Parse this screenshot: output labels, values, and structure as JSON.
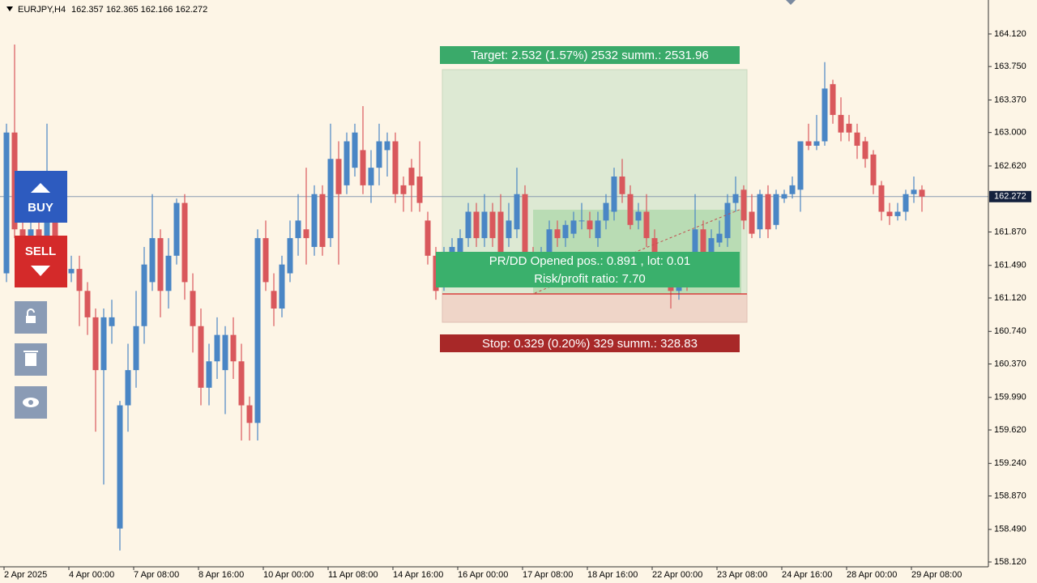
{
  "chart_data": {
    "type": "candlestick",
    "symbol": "EURJPY,H4",
    "ohlc": "162.357 162.365 162.166 162.272",
    "up_color": "#4a86c5",
    "down_color": "#d9585c",
    "ylim": [
      158.065,
      164.506
    ],
    "yticks": [
      {
        "value": 164.12,
        "label": "164.120"
      },
      {
        "value": 163.75,
        "label": "163.750"
      },
      {
        "value": 163.37,
        "label": "163.370"
      },
      {
        "value": 163.0,
        "label": "163.000"
      },
      {
        "value": 162.62,
        "label": "162.620"
      },
      {
        "value": 161.87,
        "label": "161.870"
      },
      {
        "value": 161.49,
        "label": "161.490"
      },
      {
        "value": 161.12,
        "label": "161.120"
      },
      {
        "value": 160.74,
        "label": "160.740"
      },
      {
        "value": 160.37,
        "label": "160.370"
      },
      {
        "value": 159.99,
        "label": "159.990"
      },
      {
        "value": 159.62,
        "label": "159.620"
      },
      {
        "value": 159.24,
        "label": "159.240"
      },
      {
        "value": 158.87,
        "label": "158.870"
      },
      {
        "value": 158.49,
        "label": "158.490"
      },
      {
        "value": 158.12,
        "label": "158.120"
      }
    ],
    "current_price": 162.272,
    "categories": [
      "2 Apr 2025",
      null,
      null,
      null,
      null,
      null,
      null,
      null,
      "4 Apr 00:00",
      null,
      null,
      null,
      null,
      null,
      null,
      null,
      "7 Apr 08:00",
      null,
      null,
      null,
      null,
      null,
      null,
      null,
      "8 Apr 16:00",
      null,
      null,
      null,
      null,
      null,
      null,
      null,
      "10 Apr 00:00",
      null,
      null,
      null,
      null,
      null,
      null,
      null,
      "11 Apr 08:00",
      null,
      null,
      null,
      null,
      null,
      null,
      null,
      "14 Apr 16:00",
      null,
      null,
      null,
      null,
      null,
      null,
      null,
      "16 Apr 00:00",
      null,
      null,
      null,
      null,
      null,
      null,
      null,
      "17 Apr 08:00",
      null,
      null,
      null,
      null,
      null,
      null,
      null,
      "18 Apr 16:00",
      null,
      null,
      null,
      null,
      null,
      null,
      null,
      "22 Apr 00:00",
      null,
      null,
      null,
      null,
      null,
      null,
      null,
      "23 Apr 08:00",
      null,
      null,
      null,
      null,
      null,
      null,
      null,
      "24 Apr 16:00",
      null,
      null,
      null,
      null,
      null,
      null,
      null,
      "28 Apr 00:00",
      null,
      null,
      null,
      null,
      null,
      null,
      null,
      "29 Apr 08:00",
      null
    ],
    "candles": [
      [
        161.4,
        163.1,
        161.3,
        163.0
      ],
      [
        163.0,
        164.0,
        161.8,
        161.9
      ],
      [
        161.9,
        162.0,
        161.3,
        161.4
      ],
      [
        161.4,
        162.0,
        161.3,
        161.9
      ],
      [
        161.9,
        162.0,
        161.5,
        161.6
      ],
      [
        161.5,
        163.1,
        161.4,
        162.2
      ],
      [
        162.2,
        162.3,
        161.5,
        161.6
      ],
      [
        161.6,
        161.7,
        161.3,
        161.4
      ],
      [
        161.4,
        161.6,
        161.3,
        161.45
      ],
      [
        161.45,
        161.6,
        160.8,
        161.2
      ],
      [
        161.2,
        161.3,
        160.7,
        160.9
      ],
      [
        160.9,
        161.0,
        159.6,
        160.3
      ],
      [
        160.3,
        161.0,
        159.0,
        160.9
      ],
      [
        160.8,
        161.1,
        160.6,
        160.9
      ],
      [
        158.5,
        159.95,
        158.25,
        159.9
      ],
      [
        159.9,
        160.6,
        159.6,
        160.3
      ],
      [
        160.3,
        161.2,
        160.1,
        160.8
      ],
      [
        160.8,
        161.7,
        160.6,
        161.5
      ],
      [
        161.3,
        162.3,
        161.2,
        161.8
      ],
      [
        161.8,
        161.9,
        160.9,
        161.2
      ],
      [
        161.2,
        161.8,
        161.0,
        161.6
      ],
      [
        161.6,
        162.25,
        161.5,
        162.2
      ],
      [
        162.2,
        162.3,
        161.1,
        161.3
      ],
      [
        161.2,
        161.4,
        160.5,
        160.8
      ],
      [
        160.8,
        161.0,
        159.9,
        160.1
      ],
      [
        160.1,
        160.6,
        159.9,
        160.4
      ],
      [
        160.4,
        160.9,
        160.2,
        160.7
      ],
      [
        160.3,
        160.8,
        159.8,
        160.7
      ],
      [
        160.7,
        160.9,
        160.2,
        160.4
      ],
      [
        160.4,
        160.6,
        159.5,
        159.9
      ],
      [
        159.9,
        160.0,
        159.5,
        159.7
      ],
      [
        159.7,
        161.9,
        159.5,
        161.8
      ],
      [
        161.8,
        162.0,
        161.2,
        161.3
      ],
      [
        161.2,
        161.4,
        160.8,
        161.0
      ],
      [
        161.0,
        161.6,
        160.9,
        161.5
      ],
      [
        161.4,
        162.0,
        161.3,
        161.8
      ],
      [
        161.8,
        162.3,
        161.6,
        162.0
      ],
      [
        161.9,
        162.6,
        161.5,
        161.8
      ],
      [
        161.7,
        162.4,
        161.6,
        162.3
      ],
      [
        162.3,
        162.4,
        161.6,
        161.7
      ],
      [
        161.8,
        163.1,
        161.7,
        162.7
      ],
      [
        162.7,
        162.9,
        161.5,
        162.3
      ],
      [
        162.4,
        163.0,
        162.3,
        162.9
      ],
      [
        162.6,
        163.1,
        162.5,
        163.0
      ],
      [
        162.8,
        163.3,
        162.3,
        162.4
      ],
      [
        162.4,
        162.8,
        162.2,
        162.6
      ],
      [
        162.6,
        163.1,
        162.4,
        162.9
      ],
      [
        162.8,
        163.0,
        162.5,
        162.9
      ],
      [
        162.9,
        163.0,
        162.2,
        162.3
      ],
      [
        162.4,
        162.5,
        162.1,
        162.3
      ],
      [
        162.6,
        162.7,
        162.1,
        162.4
      ],
      [
        162.5,
        162.9,
        162.1,
        162.2
      ],
      [
        162.0,
        162.1,
        161.5,
        161.6
      ],
      [
        161.6,
        161.7,
        161.1,
        161.2
      ],
      [
        161.3,
        161.7,
        161.2,
        161.6
      ],
      [
        161.6,
        161.8,
        161.5,
        161.7
      ],
      [
        161.6,
        161.9,
        161.5,
        161.8
      ],
      [
        161.8,
        162.2,
        161.7,
        162.1
      ],
      [
        162.1,
        162.2,
        161.7,
        161.8
      ],
      [
        161.8,
        162.3,
        161.7,
        162.1
      ],
      [
        162.1,
        162.2,
        161.7,
        161.8
      ],
      [
        162.1,
        162.3,
        161.5,
        161.6
      ],
      [
        161.8,
        162.2,
        161.7,
        162.0
      ],
      [
        161.9,
        162.6,
        161.8,
        162.3
      ],
      [
        162.3,
        162.4,
        161.4,
        161.5
      ],
      [
        161.6,
        161.7,
        161.3,
        161.4
      ],
      [
        161.4,
        161.7,
        161.3,
        161.6
      ],
      [
        161.6,
        162.0,
        161.5,
        161.9
      ],
      [
        161.9,
        162.0,
        161.7,
        161.8
      ],
      [
        161.8,
        162.0,
        161.7,
        161.95
      ],
      [
        161.85,
        162.1,
        161.8,
        162.0
      ],
      [
        162.0,
        162.2,
        161.9,
        162.0
      ],
      [
        162.0,
        162.1,
        161.8,
        161.9
      ],
      [
        161.8,
        162.1,
        161.7,
        162.0
      ],
      [
        162.0,
        162.3,
        161.9,
        162.2
      ],
      [
        162.1,
        162.6,
        162.0,
        162.5
      ],
      [
        162.5,
        162.7,
        162.2,
        162.3
      ],
      [
        162.3,
        162.4,
        161.9,
        161.95
      ],
      [
        162.0,
        162.2,
        161.9,
        162.1
      ],
      [
        162.1,
        162.3,
        161.7,
        161.8
      ],
      [
        161.8,
        161.9,
        161.4,
        161.5
      ],
      [
        161.5,
        161.6,
        161.3,
        161.4
      ],
      [
        161.4,
        161.5,
        161.0,
        161.2
      ],
      [
        161.2,
        161.5,
        161.1,
        161.4
      ],
      [
        161.4,
        161.5,
        161.2,
        161.3
      ],
      [
        161.4,
        162.3,
        161.3,
        161.9
      ],
      [
        161.9,
        162.0,
        161.5,
        161.6
      ],
      [
        161.6,
        161.9,
        161.5,
        161.8
      ],
      [
        161.75,
        162.0,
        161.7,
        161.85
      ],
      [
        161.8,
        162.3,
        161.7,
        162.2
      ],
      [
        162.2,
        162.5,
        162.1,
        162.3
      ],
      [
        162.35,
        162.4,
        161.9,
        162.0
      ],
      [
        162.1,
        162.3,
        161.8,
        161.85
      ],
      [
        161.9,
        162.35,
        161.8,
        162.3
      ],
      [
        162.3,
        162.4,
        161.8,
        161.9
      ],
      [
        161.95,
        162.35,
        161.9,
        162.3
      ],
      [
        162.25,
        162.35,
        162.2,
        162.3
      ],
      [
        162.3,
        162.5,
        162.25,
        162.4
      ],
      [
        162.35,
        162.9,
        162.1,
        162.9
      ],
      [
        162.9,
        163.1,
        162.8,
        162.85
      ],
      [
        162.85,
        163.2,
        162.8,
        162.9
      ],
      [
        162.9,
        163.8,
        162.85,
        163.5
      ],
      [
        163.55,
        163.6,
        163.1,
        163.2
      ],
      [
        163.2,
        163.4,
        162.9,
        163.0
      ],
      [
        163.1,
        163.2,
        162.9,
        163.0
      ],
      [
        163.0,
        163.1,
        162.7,
        162.85
      ],
      [
        162.9,
        162.95,
        162.6,
        162.7
      ],
      [
        162.75,
        162.8,
        162.3,
        162.4
      ],
      [
        162.4,
        162.45,
        162.0,
        162.1
      ],
      [
        162.1,
        162.2,
        161.95,
        162.05
      ],
      [
        162.05,
        162.2,
        162.0,
        162.1
      ],
      [
        162.1,
        162.35,
        162.0,
        162.3
      ],
      [
        162.3,
        162.5,
        162.2,
        162.35
      ],
      [
        162.35,
        162.4,
        162.1,
        162.272
      ]
    ]
  },
  "panel": {
    "target": "Target: 2.532 (1.57%) 2532 summ.: 2531.96",
    "prdd": "PR/DD Opened pos.: 0.891 , lot: 0.01",
    "ratio": "Risk/profit ratio: 7.70",
    "stop": "Stop: 0.329 (0.20%) 329 summ.: 328.83"
  },
  "buttons": {
    "buy": "BUY",
    "sell": "SELL"
  }
}
